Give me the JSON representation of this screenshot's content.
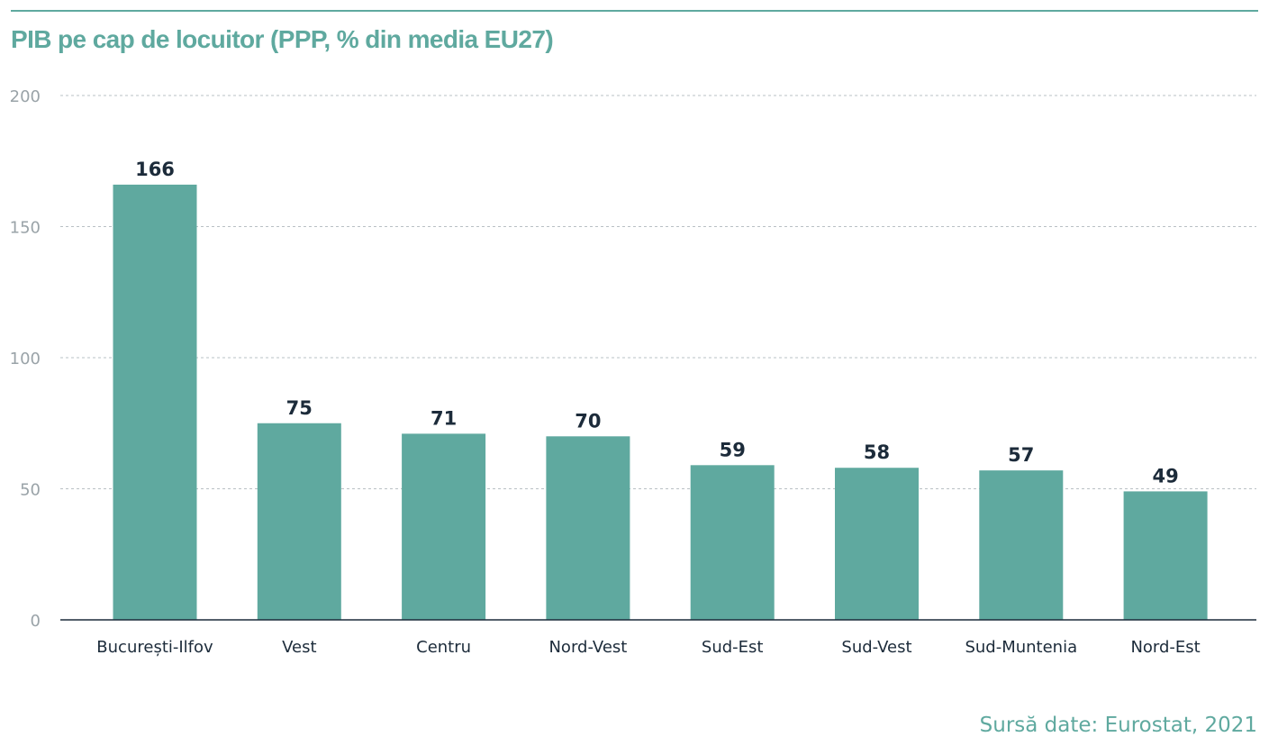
{
  "title": "PIB pe cap de locuitor (PPP, % din media EU27)",
  "source": "Sursă date: Eurostat, 2021",
  "colors": {
    "bar": "#5fa99f",
    "title": "#5fa99f",
    "grid": "#b9c0c4",
    "axis": "#1c2b3a",
    "label": "#1c2b3a"
  },
  "chart_data": {
    "type": "bar",
    "title": "PIB pe cap de locuitor (PPP, % din media EU27)",
    "categories": [
      "București-Ilfov",
      "Vest",
      "Centru",
      "Nord-Vest",
      "Sud-Est",
      "Sud-Vest",
      "Sud-Muntenia",
      "Nord-Est"
    ],
    "values": [
      166,
      75,
      71,
      70,
      59,
      58,
      57,
      49
    ],
    "ylim": [
      0,
      200
    ],
    "yticks": [
      0,
      50,
      100,
      150,
      200
    ],
    "grid": true,
    "data_labels": true,
    "legend": "none"
  }
}
